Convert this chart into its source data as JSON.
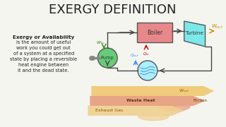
{
  "title": "EXERGY DEFINITION",
  "title_fontsize": 13,
  "bg_color": "#f5f5f0",
  "text_color": "#222222",
  "exergy_text_bold": "Exergy or Availability",
  "exergy_text_body": "is the amount of useful\nwork you could get out\nof a system at a specified\nstate by placing a reversible\nheat engine between\nit and the dead state.",
  "boiler_color": "#e8888a",
  "boiler_label": "Boiler",
  "turbine_color": "#7de8e8",
  "turbine_label": "Turbine",
  "pump_color": "#66cc77",
  "pump_label": "Pump",
  "condenser_color": "#aaeeff",
  "w_out_color": "#cc8800",
  "q_out_color": "#3388ff",
  "q_in_color": "#cc0000",
  "w_in_color": "#228800",
  "waste_heat_color": "#e8a080",
  "friction_color": "#f0c870",
  "exhaust_color": "#f0d090"
}
